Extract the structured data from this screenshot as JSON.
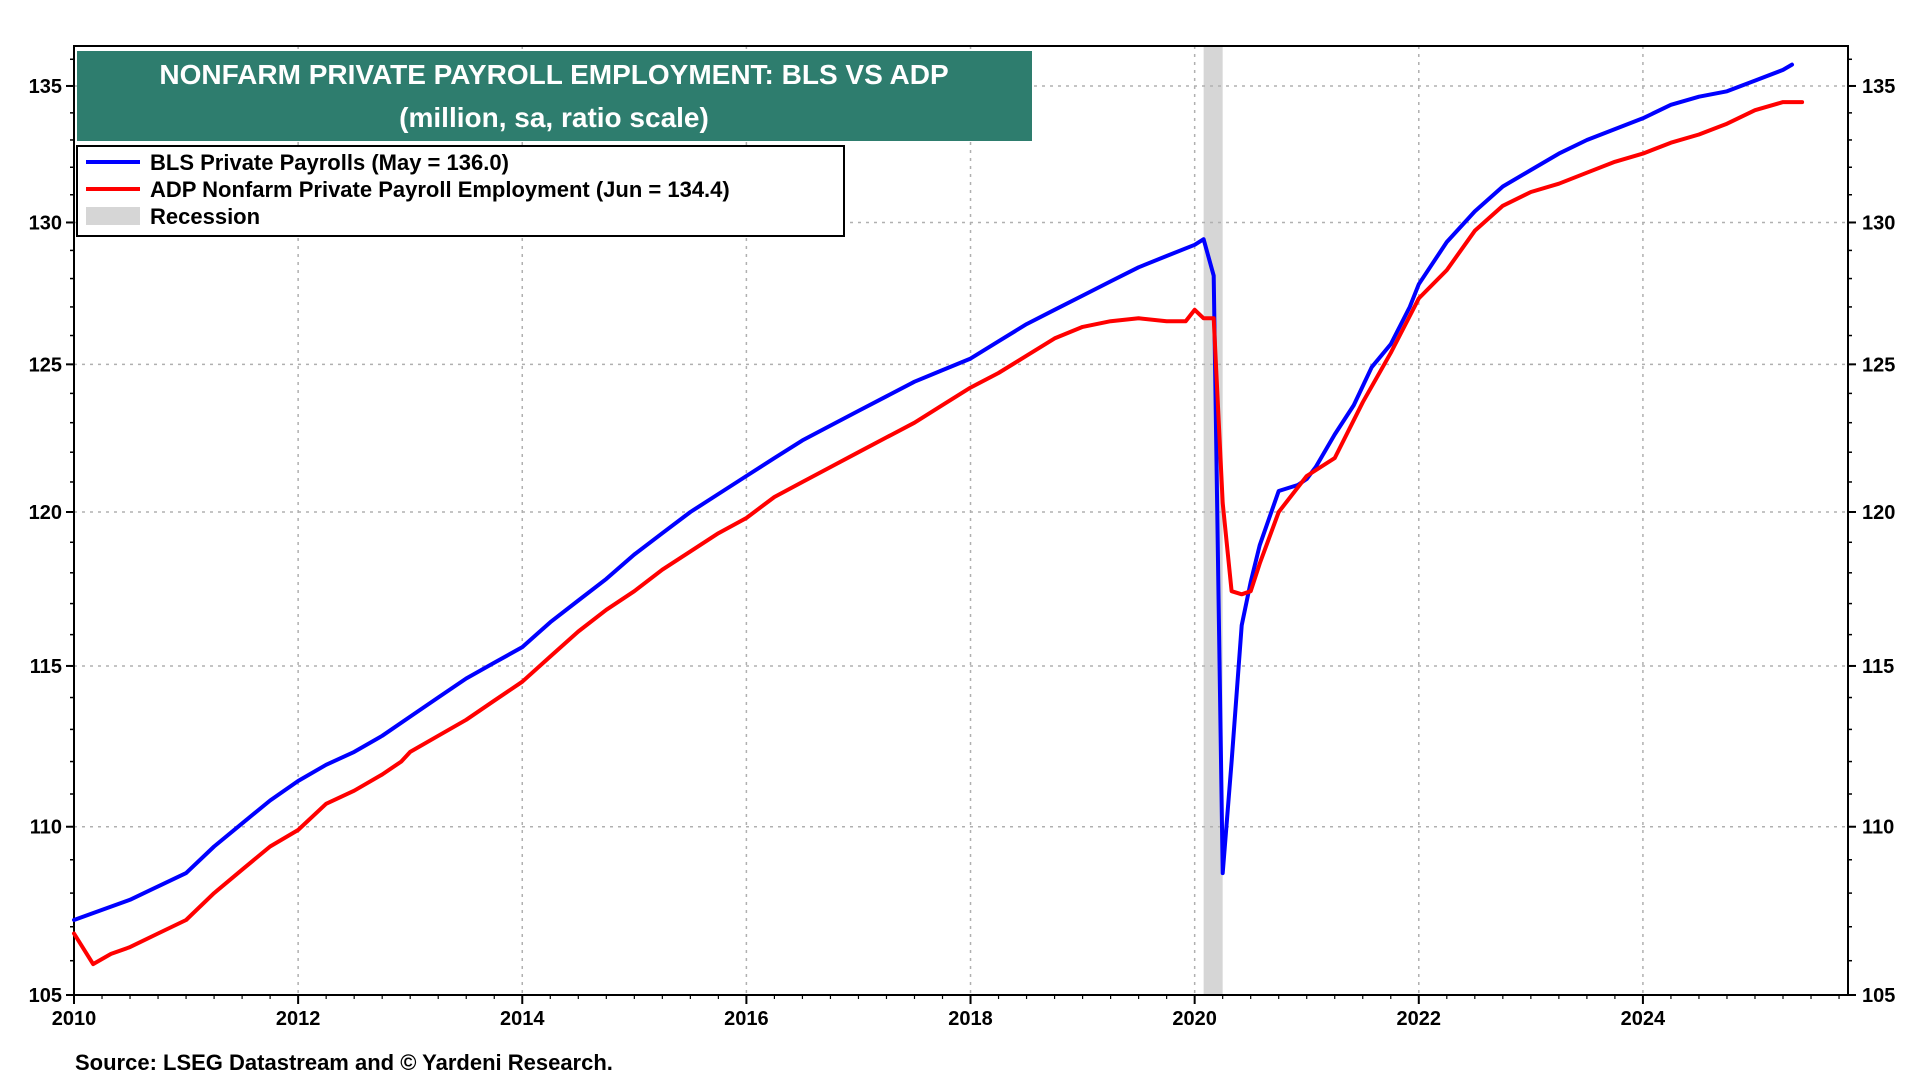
{
  "title": "NONFARM PRIVATE PAYROLL EMPLOYMENT: BLS VS ADP",
  "subtitle": "(million, sa, ratio scale)",
  "source": "Source: LSEG Datastream and © Yardeni Research.",
  "colors": {
    "title_bg": "#2e7d6e",
    "bls": "#0000ff",
    "adp": "#ff0000",
    "recession": "#d6d6d6",
    "grid": "#b0b0b0"
  },
  "legend": [
    {
      "label": "BLS Private Payrolls  (May  = 136.0)",
      "color": "#0000ff",
      "kind": "line"
    },
    {
      "label": "ADP Nonfarm Private Payroll Employment  (Jun  = 134.4)",
      "color": "#ff0000",
      "kind": "line"
    },
    {
      "label": "Recession",
      "color": "#d6d6d6",
      "kind": "band"
    }
  ],
  "chart_data": {
    "type": "line",
    "title": "NONFARM PRIVATE PAYROLL EMPLOYMENT: BLS VS ADP",
    "subtitle": "(million, sa, ratio scale)",
    "y_scale": "log",
    "xlim": [
      2010.0,
      2025.83
    ],
    "ylim": [
      105,
      136.5
    ],
    "x_ticks": [
      "2010",
      "2012",
      "2014",
      "2016",
      "2018",
      "2020",
      "2022",
      "2024"
    ],
    "y_ticks": [
      "105",
      "110",
      "115",
      "120",
      "125",
      "130",
      "135"
    ],
    "grid": true,
    "legend_position": "top-left",
    "recession": [
      2020.08,
      2020.25
    ],
    "series": [
      {
        "name": "BLS Private Payrolls  (May  = 136.0)",
        "color": "#0000ff",
        "x": [
          2010.0,
          2010.25,
          2010.5,
          2010.75,
          2011.0,
          2011.25,
          2011.5,
          2011.75,
          2012.0,
          2012.25,
          2012.5,
          2012.75,
          2013.0,
          2013.25,
          2013.5,
          2013.75,
          2014.0,
          2014.25,
          2014.5,
          2014.75,
          2015.0,
          2015.25,
          2015.5,
          2015.75,
          2016.0,
          2016.25,
          2016.5,
          2016.75,
          2017.0,
          2017.25,
          2017.5,
          2017.75,
          2018.0,
          2018.25,
          2018.5,
          2018.75,
          2019.0,
          2019.25,
          2019.5,
          2019.75,
          2020.0,
          2020.08,
          2020.17,
          2020.25,
          2020.33,
          2020.42,
          2020.5,
          2020.58,
          2020.75,
          2020.92,
          2021.0,
          2021.08,
          2021.25,
          2021.42,
          2021.58,
          2021.75,
          2021.92,
          2022.0,
          2022.25,
          2022.5,
          2022.75,
          2023.0,
          2023.25,
          2023.5,
          2023.75,
          2024.0,
          2024.25,
          2024.5,
          2024.75,
          2025.0,
          2025.25,
          2025.33
        ],
        "values": [
          107.2,
          107.5,
          107.8,
          108.2,
          108.6,
          109.4,
          110.1,
          110.8,
          111.4,
          111.9,
          112.3,
          112.8,
          113.4,
          114.0,
          114.6,
          115.1,
          115.6,
          116.4,
          117.1,
          117.8,
          118.6,
          119.3,
          120.0,
          120.6,
          121.2,
          121.8,
          122.4,
          122.9,
          123.4,
          123.9,
          124.4,
          124.8,
          125.2,
          125.8,
          126.4,
          126.9,
          127.4,
          127.9,
          128.4,
          128.8,
          129.2,
          129.4,
          128.1,
          108.6,
          112.0,
          116.3,
          117.7,
          118.9,
          120.7,
          120.9,
          121.1,
          121.5,
          122.6,
          123.6,
          124.9,
          125.7,
          127.0,
          127.8,
          129.3,
          130.4,
          131.3,
          131.9,
          132.5,
          133.0,
          133.4,
          133.8,
          134.3,
          134.6,
          134.8,
          135.2,
          135.6,
          135.8
        ]
      },
      {
        "name": "ADP Nonfarm Private Payroll Employment  (Jun  = 134.4)",
        "color": "#ff0000",
        "x": [
          2010.0,
          2010.17,
          2010.33,
          2010.5,
          2010.75,
          2011.0,
          2011.25,
          2011.5,
          2011.75,
          2012.0,
          2012.25,
          2012.5,
          2012.75,
          2012.92,
          2013.0,
          2013.25,
          2013.5,
          2013.75,
          2014.0,
          2014.25,
          2014.5,
          2014.75,
          2015.0,
          2015.25,
          2015.5,
          2015.75,
          2016.0,
          2016.25,
          2016.5,
          2016.75,
          2017.0,
          2017.25,
          2017.5,
          2017.75,
          2018.0,
          2018.25,
          2018.5,
          2018.75,
          2019.0,
          2019.25,
          2019.5,
          2019.75,
          2019.92,
          2020.0,
          2020.08,
          2020.17,
          2020.25,
          2020.33,
          2020.42,
          2020.5,
          2020.58,
          2020.75,
          2021.0,
          2021.25,
          2021.5,
          2021.75,
          2022.0,
          2022.25,
          2022.5,
          2022.75,
          2023.0,
          2023.25,
          2023.5,
          2023.75,
          2024.0,
          2024.25,
          2024.5,
          2024.75,
          2025.0,
          2025.25,
          2025.42
        ],
        "values": [
          106.8,
          105.9,
          106.2,
          106.4,
          106.8,
          107.2,
          108.0,
          108.7,
          109.4,
          109.9,
          110.7,
          111.1,
          111.6,
          112.0,
          112.3,
          112.8,
          113.3,
          113.9,
          114.5,
          115.3,
          116.1,
          116.8,
          117.4,
          118.1,
          118.7,
          119.3,
          119.8,
          120.5,
          121.0,
          121.5,
          122.0,
          122.5,
          123.0,
          123.6,
          124.2,
          124.7,
          125.3,
          125.9,
          126.3,
          126.5,
          126.6,
          126.5,
          126.5,
          126.9,
          126.6,
          126.6,
          120.3,
          117.4,
          117.3,
          117.4,
          118.3,
          120.0,
          121.2,
          121.8,
          123.7,
          125.4,
          127.3,
          128.3,
          129.7,
          130.6,
          131.1,
          131.4,
          131.8,
          132.2,
          132.5,
          132.9,
          133.2,
          133.6,
          134.1,
          134.4,
          134.4
        ]
      }
    ]
  }
}
